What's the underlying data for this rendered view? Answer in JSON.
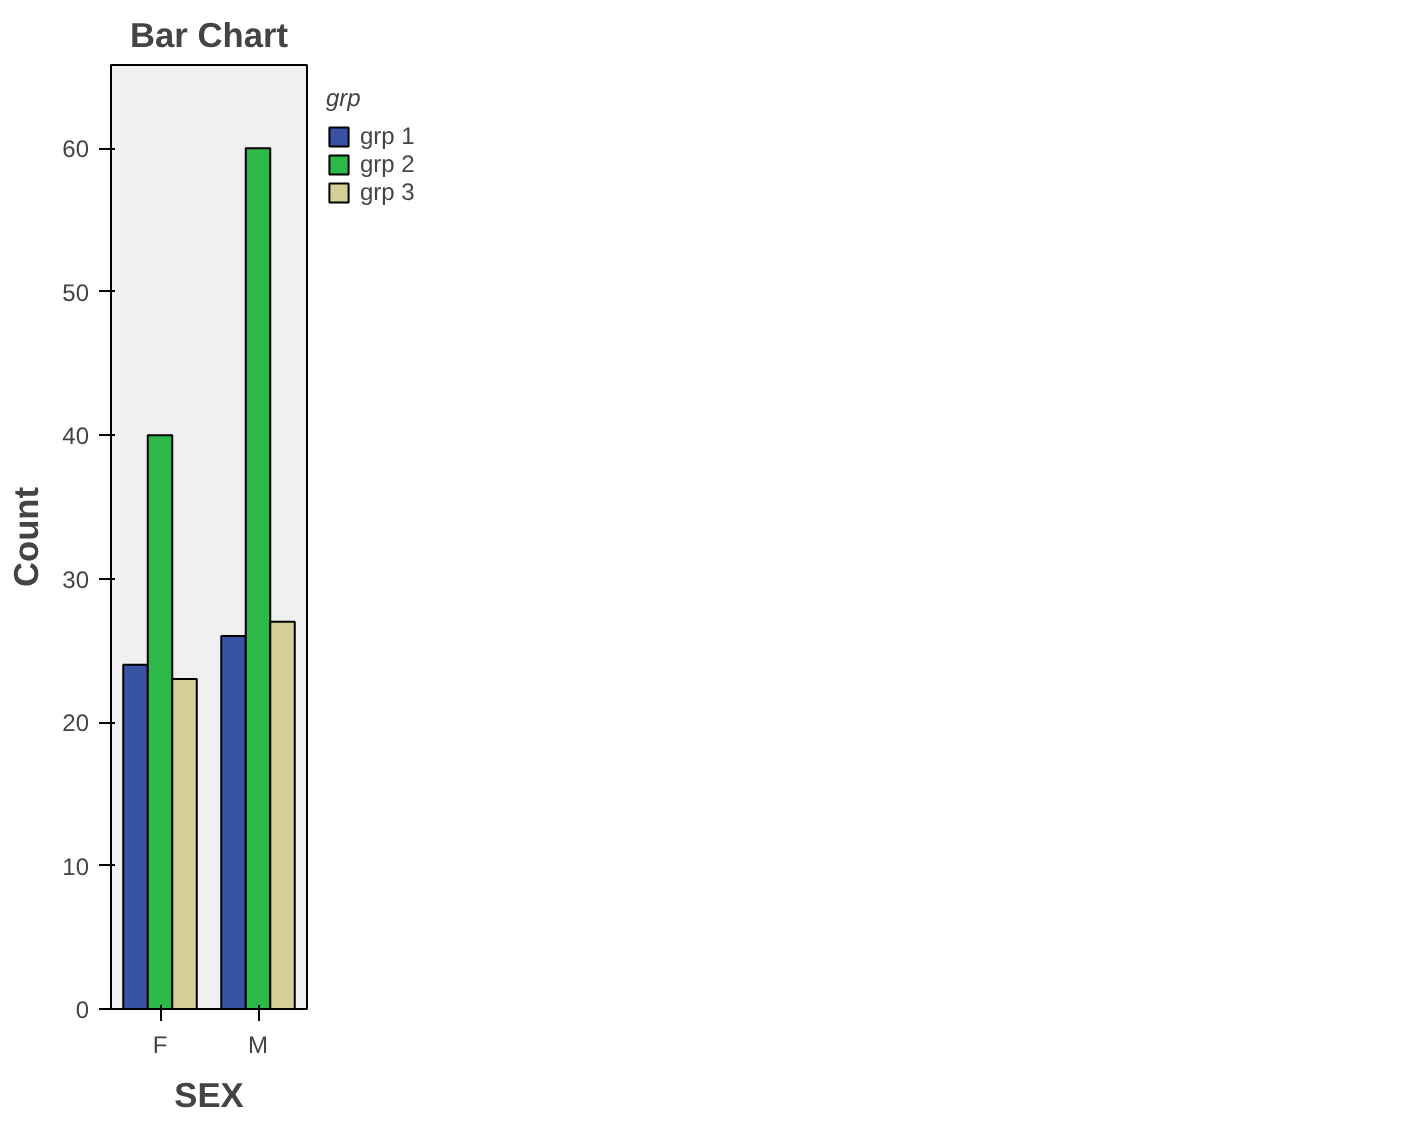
{
  "chart_data": {
    "type": "bar",
    "title": "Bar Chart",
    "xlabel": "SEX",
    "ylabel": "Count",
    "legend_title": "grp",
    "categories": [
      "F",
      "M"
    ],
    "series": [
      {
        "name": "grp 1",
        "color": "#3953a4",
        "values": [
          24,
          26
        ]
      },
      {
        "name": "grp 2",
        "color": "#2db84a",
        "values": [
          40,
          60
        ]
      },
      {
        "name": "grp 3",
        "color": "#d4cf96",
        "values": [
          23,
          27
        ]
      }
    ],
    "ylim": [
      0,
      65.8
    ],
    "yticks": [
      0,
      10,
      20,
      30,
      40,
      50,
      60
    ],
    "grid": false,
    "legend": "right"
  }
}
